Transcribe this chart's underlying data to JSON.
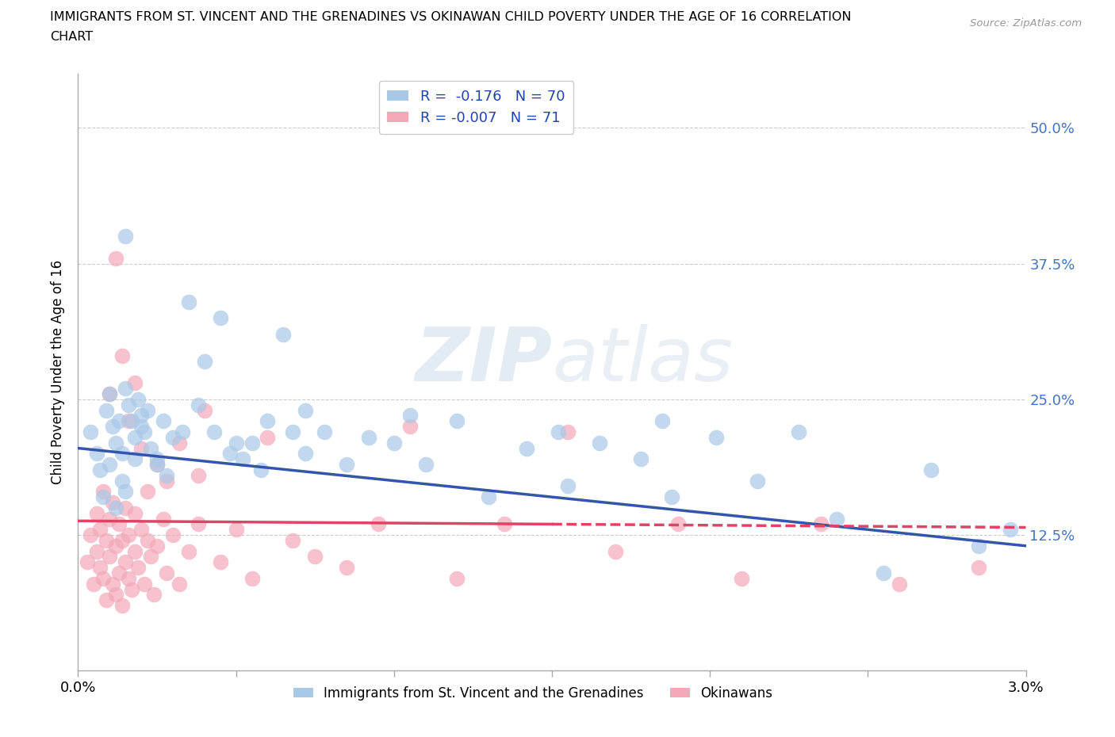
{
  "title_line1": "IMMIGRANTS FROM ST. VINCENT AND THE GRENADINES VS OKINAWAN CHILD POVERTY UNDER THE AGE OF 16 CORRELATION",
  "title_line2": "CHART",
  "source": "Source: ZipAtlas.com",
  "ylabel": "Child Poverty Under the Age of 16",
  "xlim": [
    0.0,
    3.0
  ],
  "ylim": [
    0.0,
    55.0
  ],
  "yticks": [
    0.0,
    12.5,
    25.0,
    37.5,
    50.0
  ],
  "xticks": [
    0.0,
    0.5,
    1.0,
    1.5,
    2.0,
    2.5,
    3.0
  ],
  "blue_color": "#a8c8e8",
  "pink_color": "#f4a8b8",
  "blue_line_color": "#3355aa",
  "pink_line_color": "#dd4466",
  "r_blue": -0.176,
  "n_blue": 70,
  "r_pink": -0.007,
  "n_pink": 71,
  "legend_label_blue": "Immigrants from St. Vincent and the Grenadines",
  "legend_label_pink": "Okinawans",
  "watermark": "ZIPatlas",
  "blue_trend_x0": 0.0,
  "blue_trend_y0": 20.5,
  "blue_trend_x1": 3.0,
  "blue_trend_y1": 11.5,
  "pink_trend_x0": 0.0,
  "pink_trend_y0": 13.8,
  "pink_trend_x1": 3.0,
  "pink_trend_y1": 13.2,
  "blue_scatter_x": [
    0.04,
    0.06,
    0.07,
    0.08,
    0.09,
    0.1,
    0.1,
    0.11,
    0.12,
    0.12,
    0.13,
    0.14,
    0.14,
    0.15,
    0.15,
    0.16,
    0.17,
    0.18,
    0.18,
    0.19,
    0.2,
    0.21,
    0.22,
    0.23,
    0.25,
    0.27,
    0.28,
    0.3,
    0.33,
    0.35,
    0.38,
    0.4,
    0.43,
    0.45,
    0.48,
    0.52,
    0.55,
    0.6,
    0.65,
    0.68,
    0.72,
    0.78,
    0.85,
    0.92,
    1.0,
    1.1,
    1.2,
    1.3,
    1.42,
    1.55,
    1.65,
    1.78,
    1.88,
    2.02,
    2.15,
    2.28,
    2.4,
    2.55,
    2.7,
    2.85,
    2.95,
    0.5,
    0.58,
    0.72,
    1.05,
    1.52,
    1.85,
    0.15,
    0.2,
    0.25
  ],
  "blue_scatter_y": [
    22.0,
    20.0,
    18.5,
    16.0,
    24.0,
    25.5,
    19.0,
    22.5,
    15.0,
    21.0,
    23.0,
    17.5,
    20.0,
    16.5,
    26.0,
    24.5,
    23.0,
    19.5,
    21.5,
    25.0,
    23.5,
    22.0,
    24.0,
    20.5,
    19.0,
    23.0,
    18.0,
    21.5,
    22.0,
    34.0,
    24.5,
    28.5,
    22.0,
    32.5,
    20.0,
    19.5,
    21.0,
    23.0,
    31.0,
    22.0,
    24.0,
    22.0,
    19.0,
    21.5,
    21.0,
    19.0,
    23.0,
    16.0,
    20.5,
    17.0,
    21.0,
    19.5,
    16.0,
    21.5,
    17.5,
    22.0,
    14.0,
    9.0,
    18.5,
    11.5,
    13.0,
    21.0,
    18.5,
    20.0,
    23.5,
    22.0,
    23.0,
    40.0,
    22.5,
    19.5
  ],
  "pink_scatter_x": [
    0.03,
    0.04,
    0.05,
    0.06,
    0.06,
    0.07,
    0.07,
    0.08,
    0.08,
    0.09,
    0.09,
    0.1,
    0.1,
    0.11,
    0.11,
    0.12,
    0.12,
    0.13,
    0.13,
    0.14,
    0.14,
    0.15,
    0.15,
    0.16,
    0.16,
    0.17,
    0.18,
    0.18,
    0.19,
    0.2,
    0.21,
    0.22,
    0.23,
    0.24,
    0.25,
    0.27,
    0.28,
    0.3,
    0.32,
    0.35,
    0.38,
    0.4,
    0.45,
    0.5,
    0.55,
    0.6,
    0.68,
    0.75,
    0.85,
    0.95,
    1.05,
    1.2,
    1.35,
    1.55,
    1.7,
    1.9,
    2.1,
    2.35,
    2.6,
    2.85,
    0.1,
    0.12,
    0.14,
    0.16,
    0.18,
    0.2,
    0.22,
    0.25,
    0.28,
    0.32,
    0.38
  ],
  "pink_scatter_y": [
    10.0,
    12.5,
    8.0,
    14.5,
    11.0,
    9.5,
    13.0,
    16.5,
    8.5,
    12.0,
    6.5,
    10.5,
    14.0,
    8.0,
    15.5,
    11.5,
    7.0,
    13.5,
    9.0,
    12.0,
    6.0,
    10.0,
    15.0,
    8.5,
    12.5,
    7.5,
    11.0,
    14.5,
    9.5,
    13.0,
    8.0,
    12.0,
    10.5,
    7.0,
    11.5,
    14.0,
    9.0,
    12.5,
    8.0,
    11.0,
    13.5,
    24.0,
    10.0,
    13.0,
    8.5,
    21.5,
    12.0,
    10.5,
    9.5,
    13.5,
    22.5,
    8.5,
    13.5,
    22.0,
    11.0,
    13.5,
    8.5,
    13.5,
    8.0,
    9.5,
    25.5,
    38.0,
    29.0,
    23.0,
    26.5,
    20.5,
    16.5,
    19.0,
    17.5,
    21.0,
    18.0
  ]
}
